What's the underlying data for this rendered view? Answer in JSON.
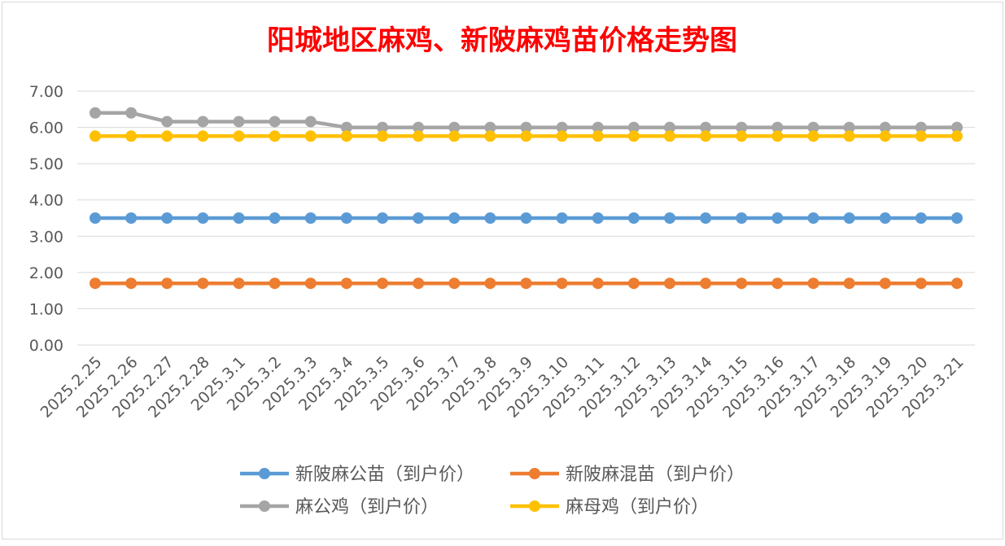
{
  "chart_data": {
    "type": "line",
    "title": "阳城地区麻鸡、新陂麻鸡苗价格走势图",
    "xlabel": "",
    "ylabel": "",
    "ylim": [
      0,
      7
    ],
    "y_ticks": [
      "0.00",
      "1.00",
      "2.00",
      "3.00",
      "4.00",
      "5.00",
      "6.00",
      "7.00"
    ],
    "grid": true,
    "legend_position": "bottom",
    "categories": [
      "2025.2.25",
      "2025.2.26",
      "2025.2.27",
      "2025.2.28",
      "2025.3.1",
      "2025.3.2",
      "2025.3.3",
      "2025.3.4",
      "2025.3.5",
      "2025.3.6",
      "2025.3.7",
      "2025.3.8",
      "2025.3.9",
      "2025.3.10",
      "2025.3.11",
      "2025.3.12",
      "2025.3.13",
      "2025.3.14",
      "2025.3.15",
      "2025.3.16",
      "2025.3.17",
      "2025.3.18",
      "2025.3.19",
      "2025.3.20",
      "2025.3.21"
    ],
    "series": [
      {
        "name": "新陂麻公苗（到户价）",
        "color": "#5B9BD5",
        "values": [
          3.5,
          3.5,
          3.5,
          3.5,
          3.5,
          3.5,
          3.5,
          3.5,
          3.5,
          3.5,
          3.5,
          3.5,
          3.5,
          3.5,
          3.5,
          3.5,
          3.5,
          3.5,
          3.5,
          3.5,
          3.5,
          3.5,
          3.5,
          3.5,
          3.5
        ]
      },
      {
        "name": "新陂麻混苗（到户价）",
        "color": "#ED7D31",
        "values": [
          1.7,
          1.7,
          1.7,
          1.7,
          1.7,
          1.7,
          1.7,
          1.7,
          1.7,
          1.7,
          1.7,
          1.7,
          1.7,
          1.7,
          1.7,
          1.7,
          1.7,
          1.7,
          1.7,
          1.7,
          1.7,
          1.7,
          1.7,
          1.7,
          1.7
        ]
      },
      {
        "name": "麻公鸡（到户价）",
        "color": "#A5A5A5",
        "values": [
          6.4,
          6.4,
          6.16,
          6.16,
          6.16,
          6.16,
          6.16,
          6.0,
          6.0,
          6.0,
          6.0,
          6.0,
          6.0,
          6.0,
          6.0,
          6.0,
          6.0,
          6.0,
          6.0,
          6.0,
          6.0,
          6.0,
          6.0,
          6.0,
          6.0
        ]
      },
      {
        "name": "麻母鸡（到户价）",
        "color": "#FFC000",
        "values": [
          5.76,
          5.76,
          5.76,
          5.76,
          5.76,
          5.76,
          5.76,
          5.76,
          5.76,
          5.76,
          5.76,
          5.76,
          5.76,
          5.76,
          5.76,
          5.76,
          5.76,
          5.76,
          5.76,
          5.76,
          5.76,
          5.76,
          5.76,
          5.76,
          5.76
        ]
      }
    ],
    "title_color": "#FF0000",
    "grid_color": "#D9D9D9",
    "text_color": "#595959"
  }
}
